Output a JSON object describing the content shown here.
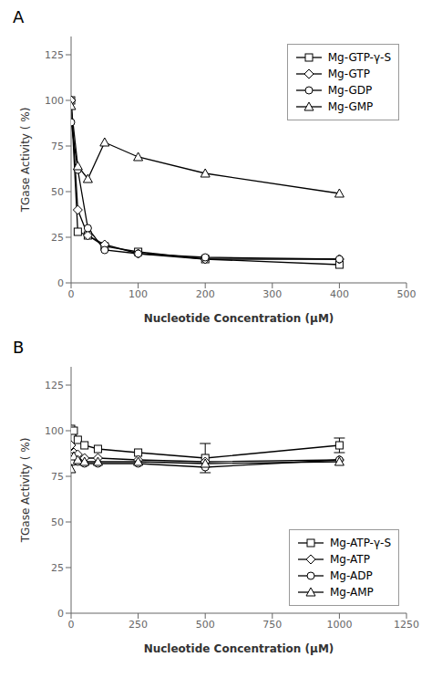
{
  "chart_data": [
    {
      "type": "line",
      "title": "A",
      "x_label": "Nucleotide Concentration (μM)",
      "y_label": "TGase Activity ( %)",
      "x": [
        0,
        10,
        25,
        50,
        100,
        200,
        400
      ],
      "xlim": [
        0,
        500
      ],
      "ylim": [
        0,
        135
      ],
      "xticks": [
        0,
        100,
        200,
        300,
        400,
        500
      ],
      "yticks": [
        0,
        25,
        50,
        75,
        100,
        125
      ],
      "grid": false,
      "legend": "upper right",
      "color": "black",
      "series": [
        {
          "name": "Mg-GTP-γ-S",
          "marker": "square",
          "line_style": "solid",
          "values": [
            100,
            28,
            26,
            20,
            17,
            13,
            10
          ]
        },
        {
          "name": "Mg-GTP",
          "marker": "diamond",
          "line_style": "solid",
          "values": [
            100,
            40,
            26,
            21,
            16,
            13,
            13
          ]
        },
        {
          "name": "Mg-GDP",
          "marker": "circle",
          "line_style": "solid",
          "values": [
            88,
            62,
            30,
            18,
            16,
            14,
            13
          ]
        },
        {
          "name": "Mg-GMP",
          "marker": "triangle",
          "line_style": "solid",
          "values": [
            97,
            64,
            57,
            77,
            69,
            60,
            49
          ]
        }
      ]
    },
    {
      "type": "line",
      "title": "B",
      "x_label": "Nucleotide Concentration (μM)",
      "y_label": "TGase Activity ( %)",
      "x": [
        0,
        10,
        25,
        50,
        100,
        250,
        500,
        1000
      ],
      "xlim": [
        0,
        1250
      ],
      "ylim": [
        0,
        135
      ],
      "xticks": [
        0,
        250,
        500,
        750,
        1000,
        1250
      ],
      "yticks": [
        0,
        25,
        50,
        75,
        100,
        125
      ],
      "grid": false,
      "legend": "lower right",
      "color": "black",
      "series": [
        {
          "name": "Mg-ATP-γ-S",
          "marker": "square",
          "line_style": "solid",
          "values": [
            101,
            100,
            95,
            92,
            90,
            88,
            85,
            92
          ],
          "yerr": [
            null,
            null,
            null,
            null,
            null,
            null,
            8,
            4
          ]
        },
        {
          "name": "Mg-ATP",
          "marker": "diamond",
          "line_style": "solid",
          "values": [
            92,
            88,
            87,
            85,
            85,
            84,
            83,
            84
          ]
        },
        {
          "name": "Mg-ADP",
          "marker": "circle",
          "line_style": "solid",
          "values": [
            86,
            83,
            83,
            82,
            82,
            82,
            80,
            84
          ]
        },
        {
          "name": "Mg-AMP",
          "marker": "triangle",
          "line_style": "solid",
          "values": [
            79,
            86,
            84,
            83,
            83,
            83,
            82,
            83
          ]
        }
      ]
    }
  ]
}
